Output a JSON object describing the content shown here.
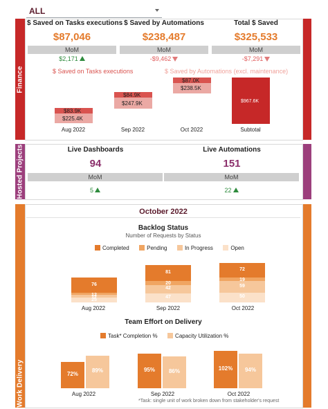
{
  "filter": {
    "value": "ALL"
  },
  "sections": {
    "finance": "Finance",
    "hosted": "Hosted Projects",
    "work": "Work Delivery"
  },
  "colors": {
    "finance": "#c62828",
    "hosted": "#9c3f7c",
    "work": "#e47b2c"
  },
  "finance": {
    "kpis": [
      {
        "title": "$ Saved on Tasks executions",
        "value": "$87,046",
        "mom": "MoM",
        "delta": "$2,171",
        "direction": "up"
      },
      {
        "title": "$ Saved by Automations",
        "value": "$238,487",
        "mom": "MoM",
        "delta": "-$9,462",
        "direction": "down"
      },
      {
        "title": "Total $ Saved",
        "value": "$325,533",
        "mom": "MoM",
        "delta": "-$7,291",
        "direction": "down"
      }
    ],
    "legend": {
      "tasks": "$ Saved on Tasks executions",
      "automations": "$ Saved by Automations (excl. maintenance)"
    },
    "waterfall": {
      "months": [
        "Aug  2022",
        "Sep  2022",
        "Oct  2022"
      ],
      "tasks_labels": [
        "$83.9K",
        "$84.9K",
        "$87.0K"
      ],
      "auto_labels": [
        "$225.4K",
        "$247.9K",
        "$238.5K"
      ],
      "subtotal_label": "Subtotal",
      "subtotal_value": "$967.6K"
    }
  },
  "hosted": {
    "kpis": [
      {
        "title": "Live Dashboards",
        "value": "94",
        "mom": "MoM",
        "delta": "5",
        "direction": "up"
      },
      {
        "title": "Live Automations",
        "value": "151",
        "mom": "MoM",
        "delta": "22",
        "direction": "up"
      }
    ]
  },
  "work": {
    "month_title": "October 2022",
    "backlog": {
      "title": "Backlog Status",
      "subtitle": "Number of Requests by Status",
      "legend": [
        "Completed",
        "Pending",
        "In Progress",
        "Open"
      ],
      "colors": [
        "#e47b2c",
        "#f0a562",
        "#f6c79b",
        "#fbe1c9"
      ],
      "months": [
        "Aug  2022",
        "Sep  2022",
        "Oct  2022"
      ],
      "series": [
        {
          "name": "Completed",
          "values": [
            76,
            81,
            72
          ]
        },
        {
          "name": "Pending",
          "values": [
            12,
            20,
            19
          ]
        },
        {
          "name": "In Progress",
          "values": [
            12,
            42,
            59
          ]
        },
        {
          "name": "Open",
          "values": [
            25,
            47,
            50
          ]
        }
      ]
    },
    "effort": {
      "title": "Team Effort on Delivery",
      "legend": [
        "Task* Completion %",
        "Capacity Utilization %"
      ],
      "colors": [
        "#e47b2c",
        "#f6c79b"
      ],
      "months": [
        "Aug  2022",
        "Sep  2022",
        "Oct  2022"
      ],
      "completion": [
        "72%",
        "95%",
        "102%"
      ],
      "capacity": [
        "89%",
        "86%",
        "94%"
      ],
      "completion_values": [
        72,
        95,
        102
      ],
      "capacity_values": [
        89,
        86,
        94
      ],
      "footnote": "*Task: single unit of work broken down from stakeholder's request"
    }
  }
}
